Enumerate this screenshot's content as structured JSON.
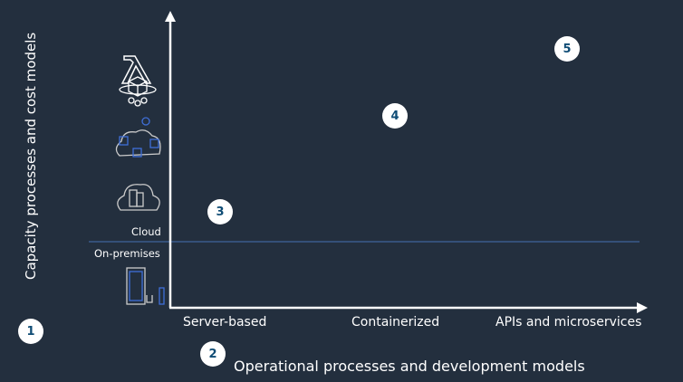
{
  "y_axis_label": "Capacity processes and cost models",
  "x_axis_label": "Operational processes and development models",
  "x_categories": [
    "Server-based",
    "Containerized",
    "APIs and microservices"
  ],
  "zones": {
    "cloud": "Cloud",
    "on_premises": "On-premises"
  },
  "badges": [
    "1",
    "2",
    "3",
    "4",
    "5"
  ],
  "icons": [
    "lambda-icon",
    "container-service-icon",
    "cloud-containers-icon",
    "cloud-server-icon",
    "on-premises-server-icon"
  ],
  "colors": {
    "background": "#232f3e",
    "divider": "#3b5b8c",
    "badge_text": "#0f4c75",
    "icon_accent": "#3f6fd8"
  }
}
